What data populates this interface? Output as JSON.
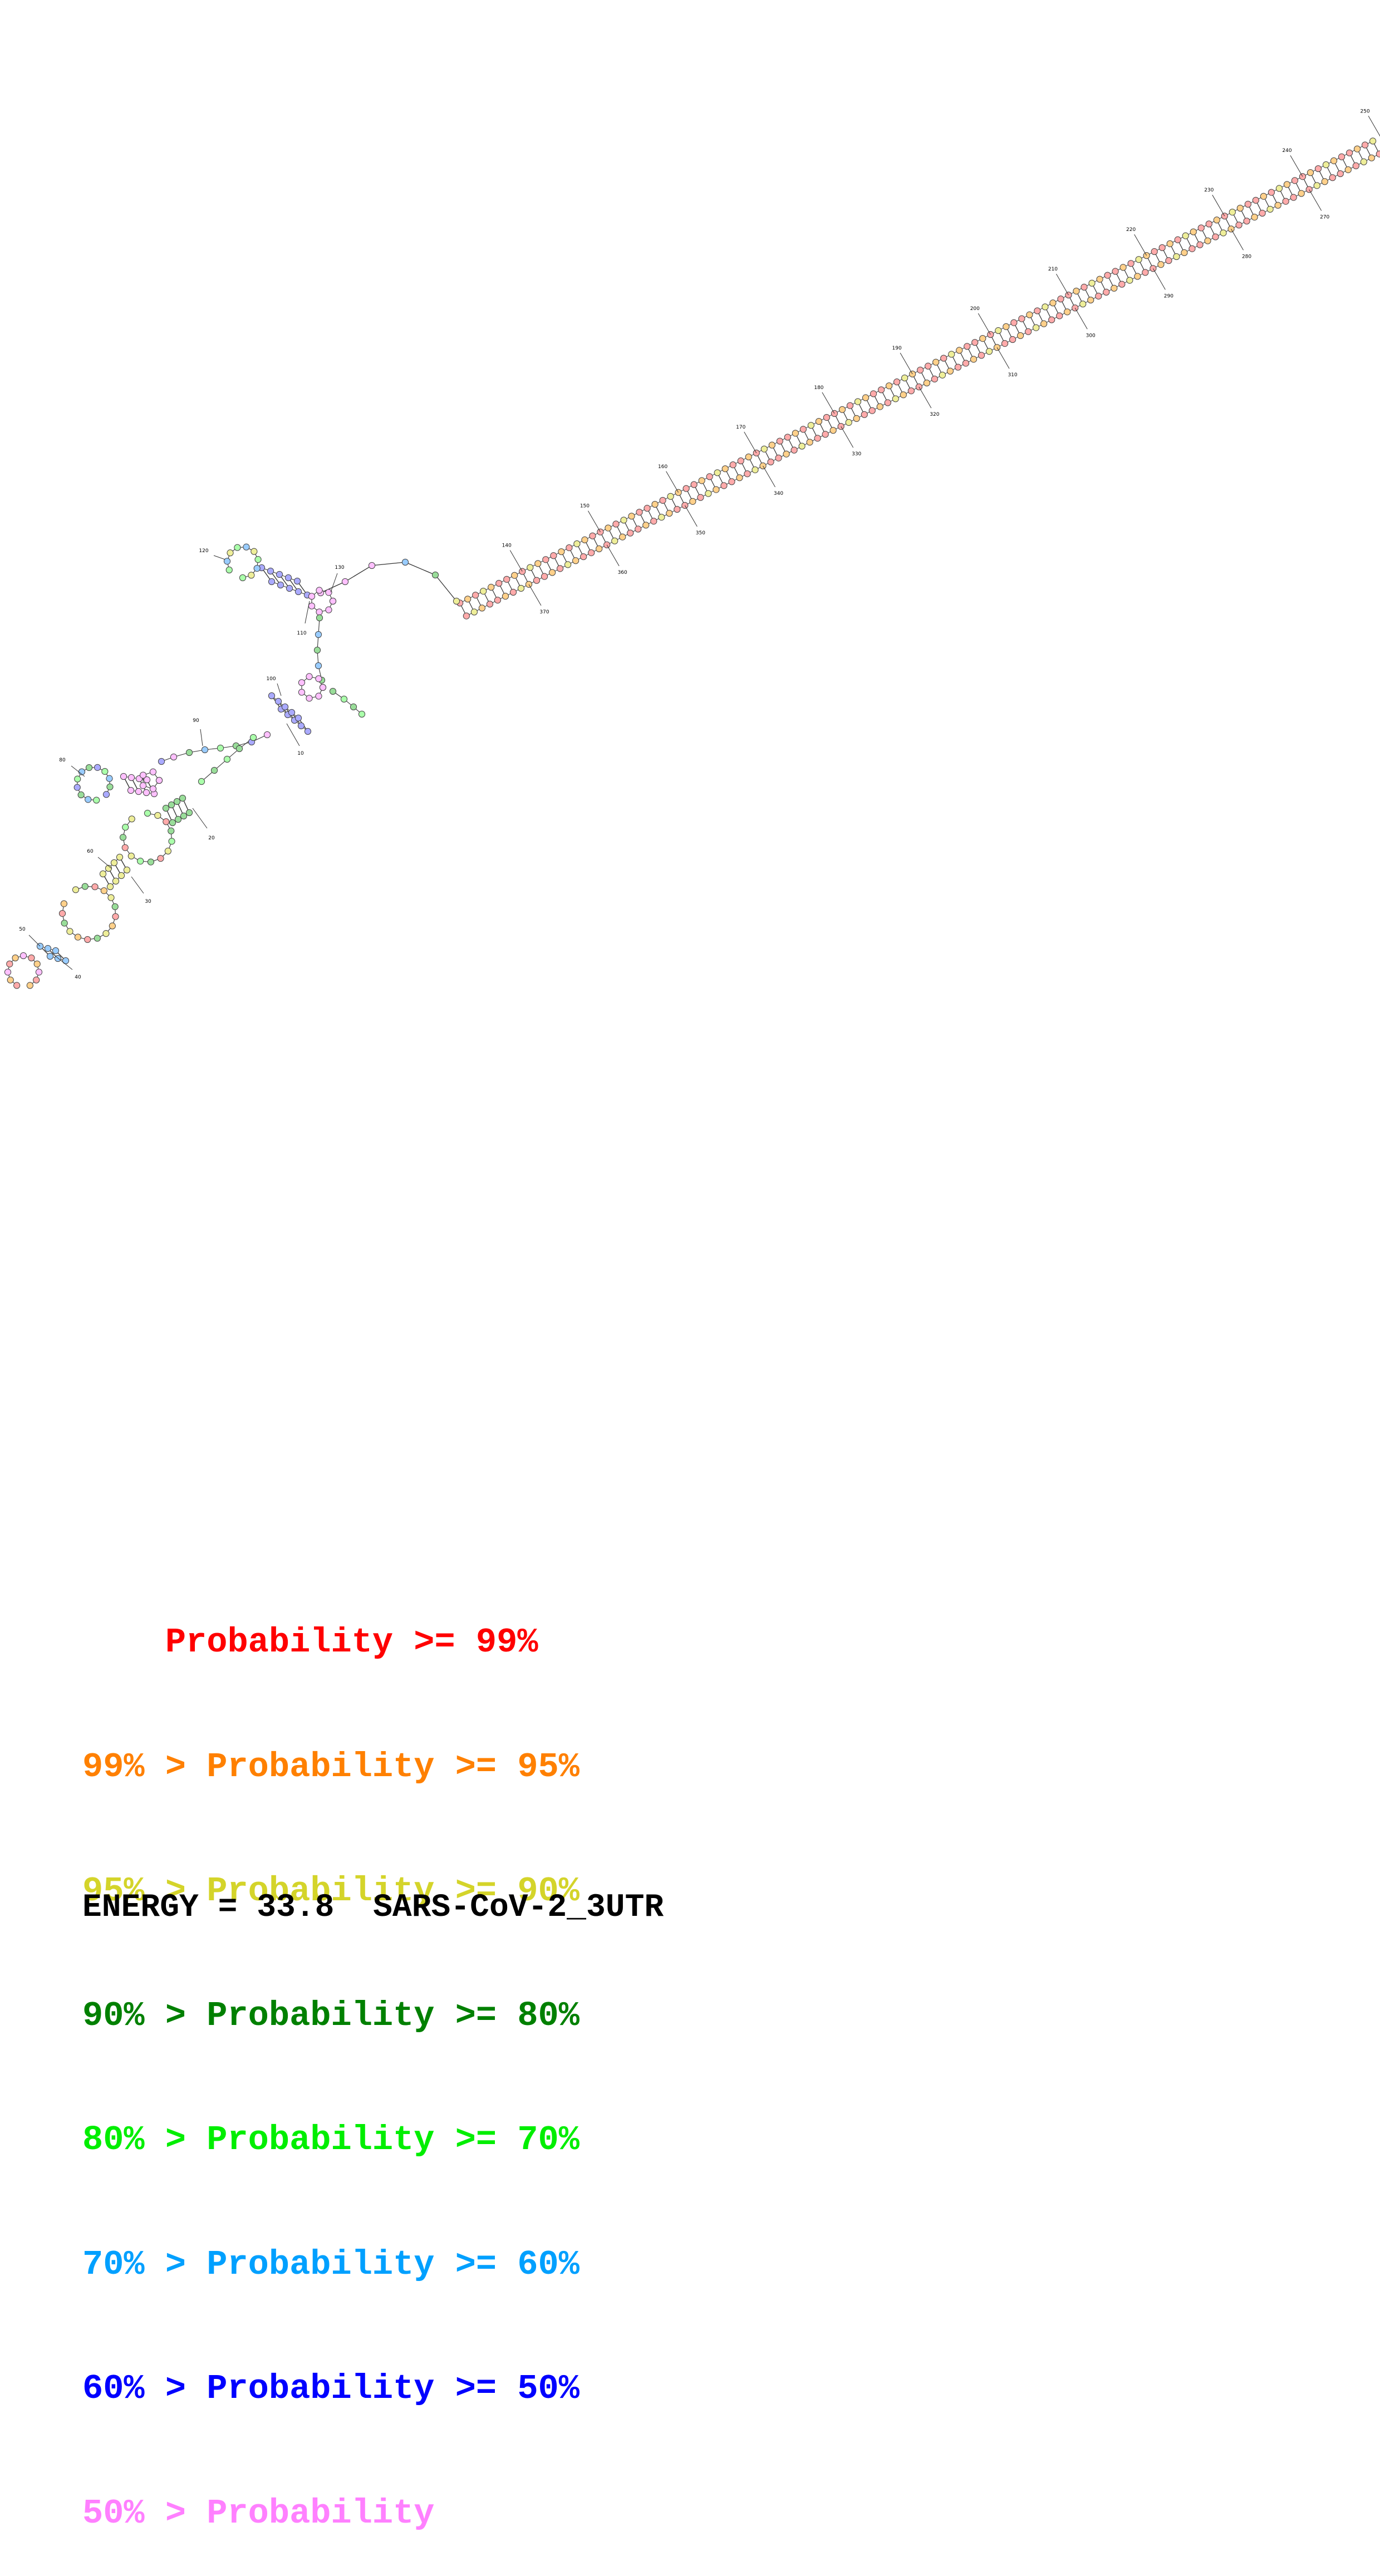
{
  "legend": {
    "rows": [
      {
        "prefix": "    ",
        "label": "Probability >= 99%",
        "color": "#ff0000"
      },
      {
        "prefix": "99% > ",
        "label": "Probability >= 95%",
        "color": "#ff8000"
      },
      {
        "prefix": "95% > ",
        "label": "Probability >= 90%",
        "color": "#d4d42a"
      },
      {
        "prefix": "90% > ",
        "label": "Probability >= 80%",
        "color": "#008000"
      },
      {
        "prefix": "80% > ",
        "label": "Probability >= 70%",
        "color": "#00ee00"
      },
      {
        "prefix": "70% > ",
        "label": "Probability >= 60%",
        "color": "#00a0ff"
      },
      {
        "prefix": "60% > ",
        "label": "Probability >= 50%",
        "color": "#0000ff"
      },
      {
        "prefix": "50% > ",
        "label": "Probability",
        "color": "#ff80ff"
      }
    ]
  },
  "footer": {
    "energy_label": "ENERGY = 33.8",
    "sequence_name": "SARS-CoV-2_3UTR"
  },
  "structure": {
    "position_labels": [
      "10",
      "20",
      "30",
      "40",
      "50",
      "60",
      "80",
      "90",
      "100",
      "110",
      "120",
      "130",
      "140",
      "150",
      "160",
      "170",
      "180",
      "190",
      "200",
      "210",
      "220",
      "230",
      "240",
      "250",
      "270",
      "280",
      "290",
      "300",
      "310",
      "320",
      "330",
      "340",
      "350",
      "360",
      "370"
    ],
    "base_colors": [
      "#ffaaaa",
      "#ffd08a",
      "#eeee99",
      "#99dd99",
      "#aaffaa",
      "#99ccff",
      "#aaaaff",
      "#ffc0ff"
    ]
  }
}
